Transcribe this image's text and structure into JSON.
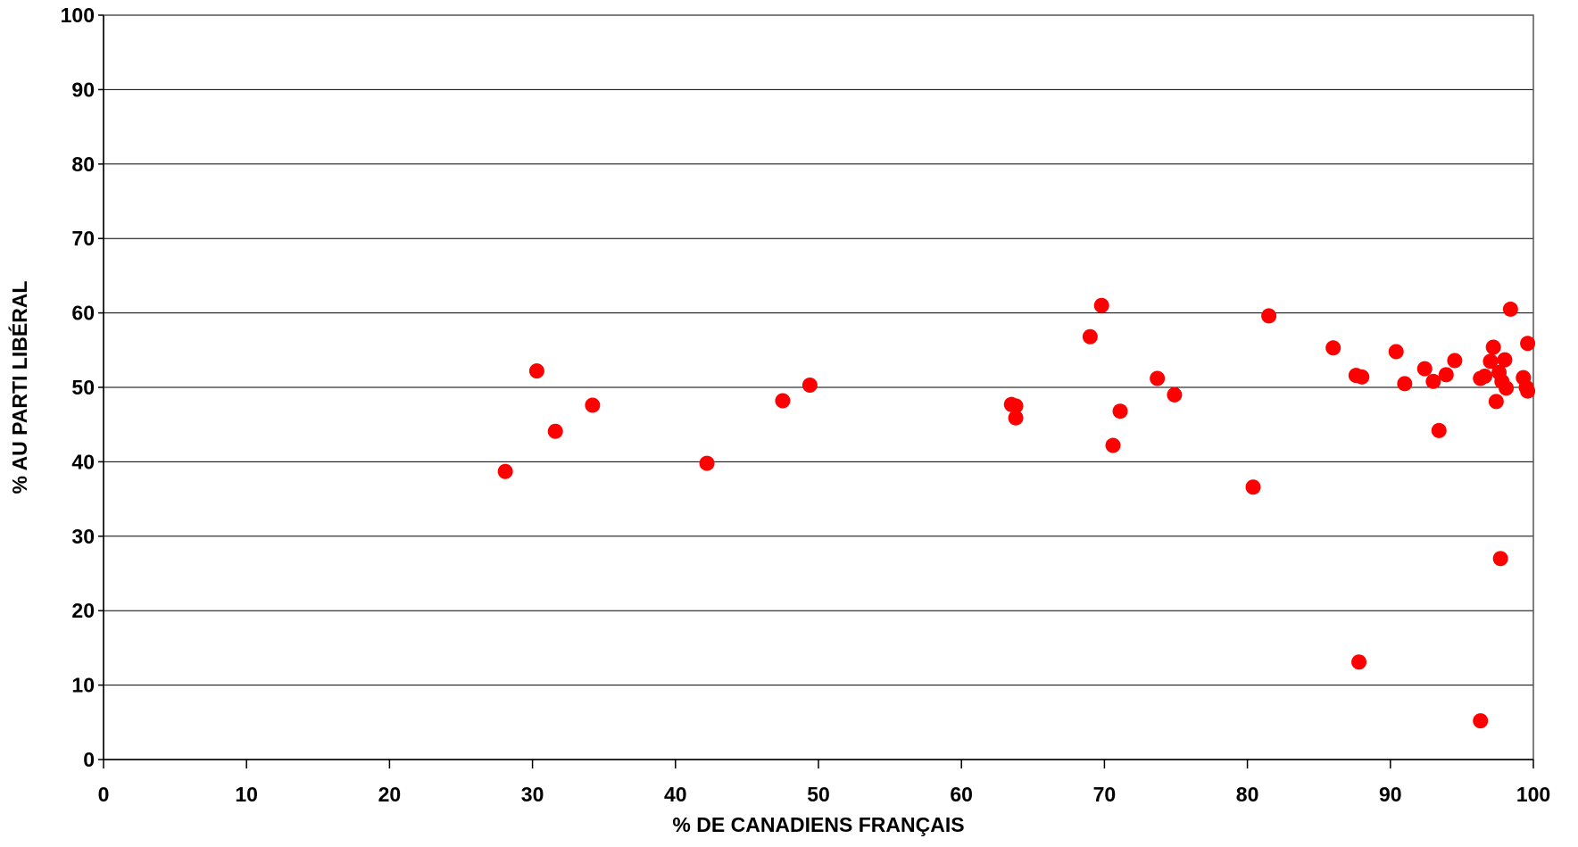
{
  "chart_data": {
    "type": "scatter",
    "title": "",
    "xlabel": "% DE CANADIENS FRANÇAIS",
    "ylabel": "% AU PARTI LIBÉRAL",
    "xlim": [
      0,
      100
    ],
    "ylim": [
      0,
      100
    ],
    "x_ticks": [
      "0",
      "10",
      "20",
      "30",
      "40",
      "50",
      "60",
      "70",
      "80",
      "90",
      "100"
    ],
    "y_ticks": [
      "0",
      "10",
      "20",
      "30",
      "40",
      "50",
      "60",
      "70",
      "80",
      "90",
      "100"
    ],
    "grid": "horizontal",
    "legend": "none",
    "marker_color": "#ff0000",
    "series": [
      {
        "points": [
          [
            28.1,
            38.7
          ],
          [
            30.3,
            52.2
          ],
          [
            31.6,
            44.1
          ],
          [
            34.2,
            47.6
          ],
          [
            42.2,
            39.8
          ],
          [
            47.5,
            48.2
          ],
          [
            49.4,
            50.3
          ],
          [
            63.5,
            47.7
          ],
          [
            63.8,
            47.5
          ],
          [
            63.8,
            45.9
          ],
          [
            69.0,
            56.8
          ],
          [
            69.8,
            61.0
          ],
          [
            70.6,
            42.2
          ],
          [
            71.1,
            46.8
          ],
          [
            73.7,
            51.2
          ],
          [
            74.9,
            49.0
          ],
          [
            80.4,
            36.6
          ],
          [
            81.5,
            59.6
          ],
          [
            86.0,
            55.3
          ],
          [
            87.6,
            51.6
          ],
          [
            87.8,
            13.1
          ],
          [
            88.0,
            51.4
          ],
          [
            90.4,
            54.8
          ],
          [
            91.0,
            50.5
          ],
          [
            92.4,
            52.5
          ],
          [
            93.0,
            50.8
          ],
          [
            93.4,
            44.2
          ],
          [
            93.9,
            51.7
          ],
          [
            94.5,
            53.6
          ],
          [
            96.3,
            51.2
          ],
          [
            96.3,
            5.2
          ],
          [
            96.6,
            51.5
          ],
          [
            97.0,
            53.5
          ],
          [
            97.2,
            55.4
          ],
          [
            97.4,
            48.1
          ],
          [
            97.6,
            52.0
          ],
          [
            97.7,
            27.0
          ],
          [
            97.8,
            50.8
          ],
          [
            98.0,
            53.7
          ],
          [
            98.1,
            49.9
          ],
          [
            98.4,
            60.5
          ],
          [
            99.3,
            51.3
          ],
          [
            99.5,
            50.0
          ],
          [
            99.6,
            49.5
          ],
          [
            99.6,
            55.9
          ]
        ]
      }
    ]
  }
}
